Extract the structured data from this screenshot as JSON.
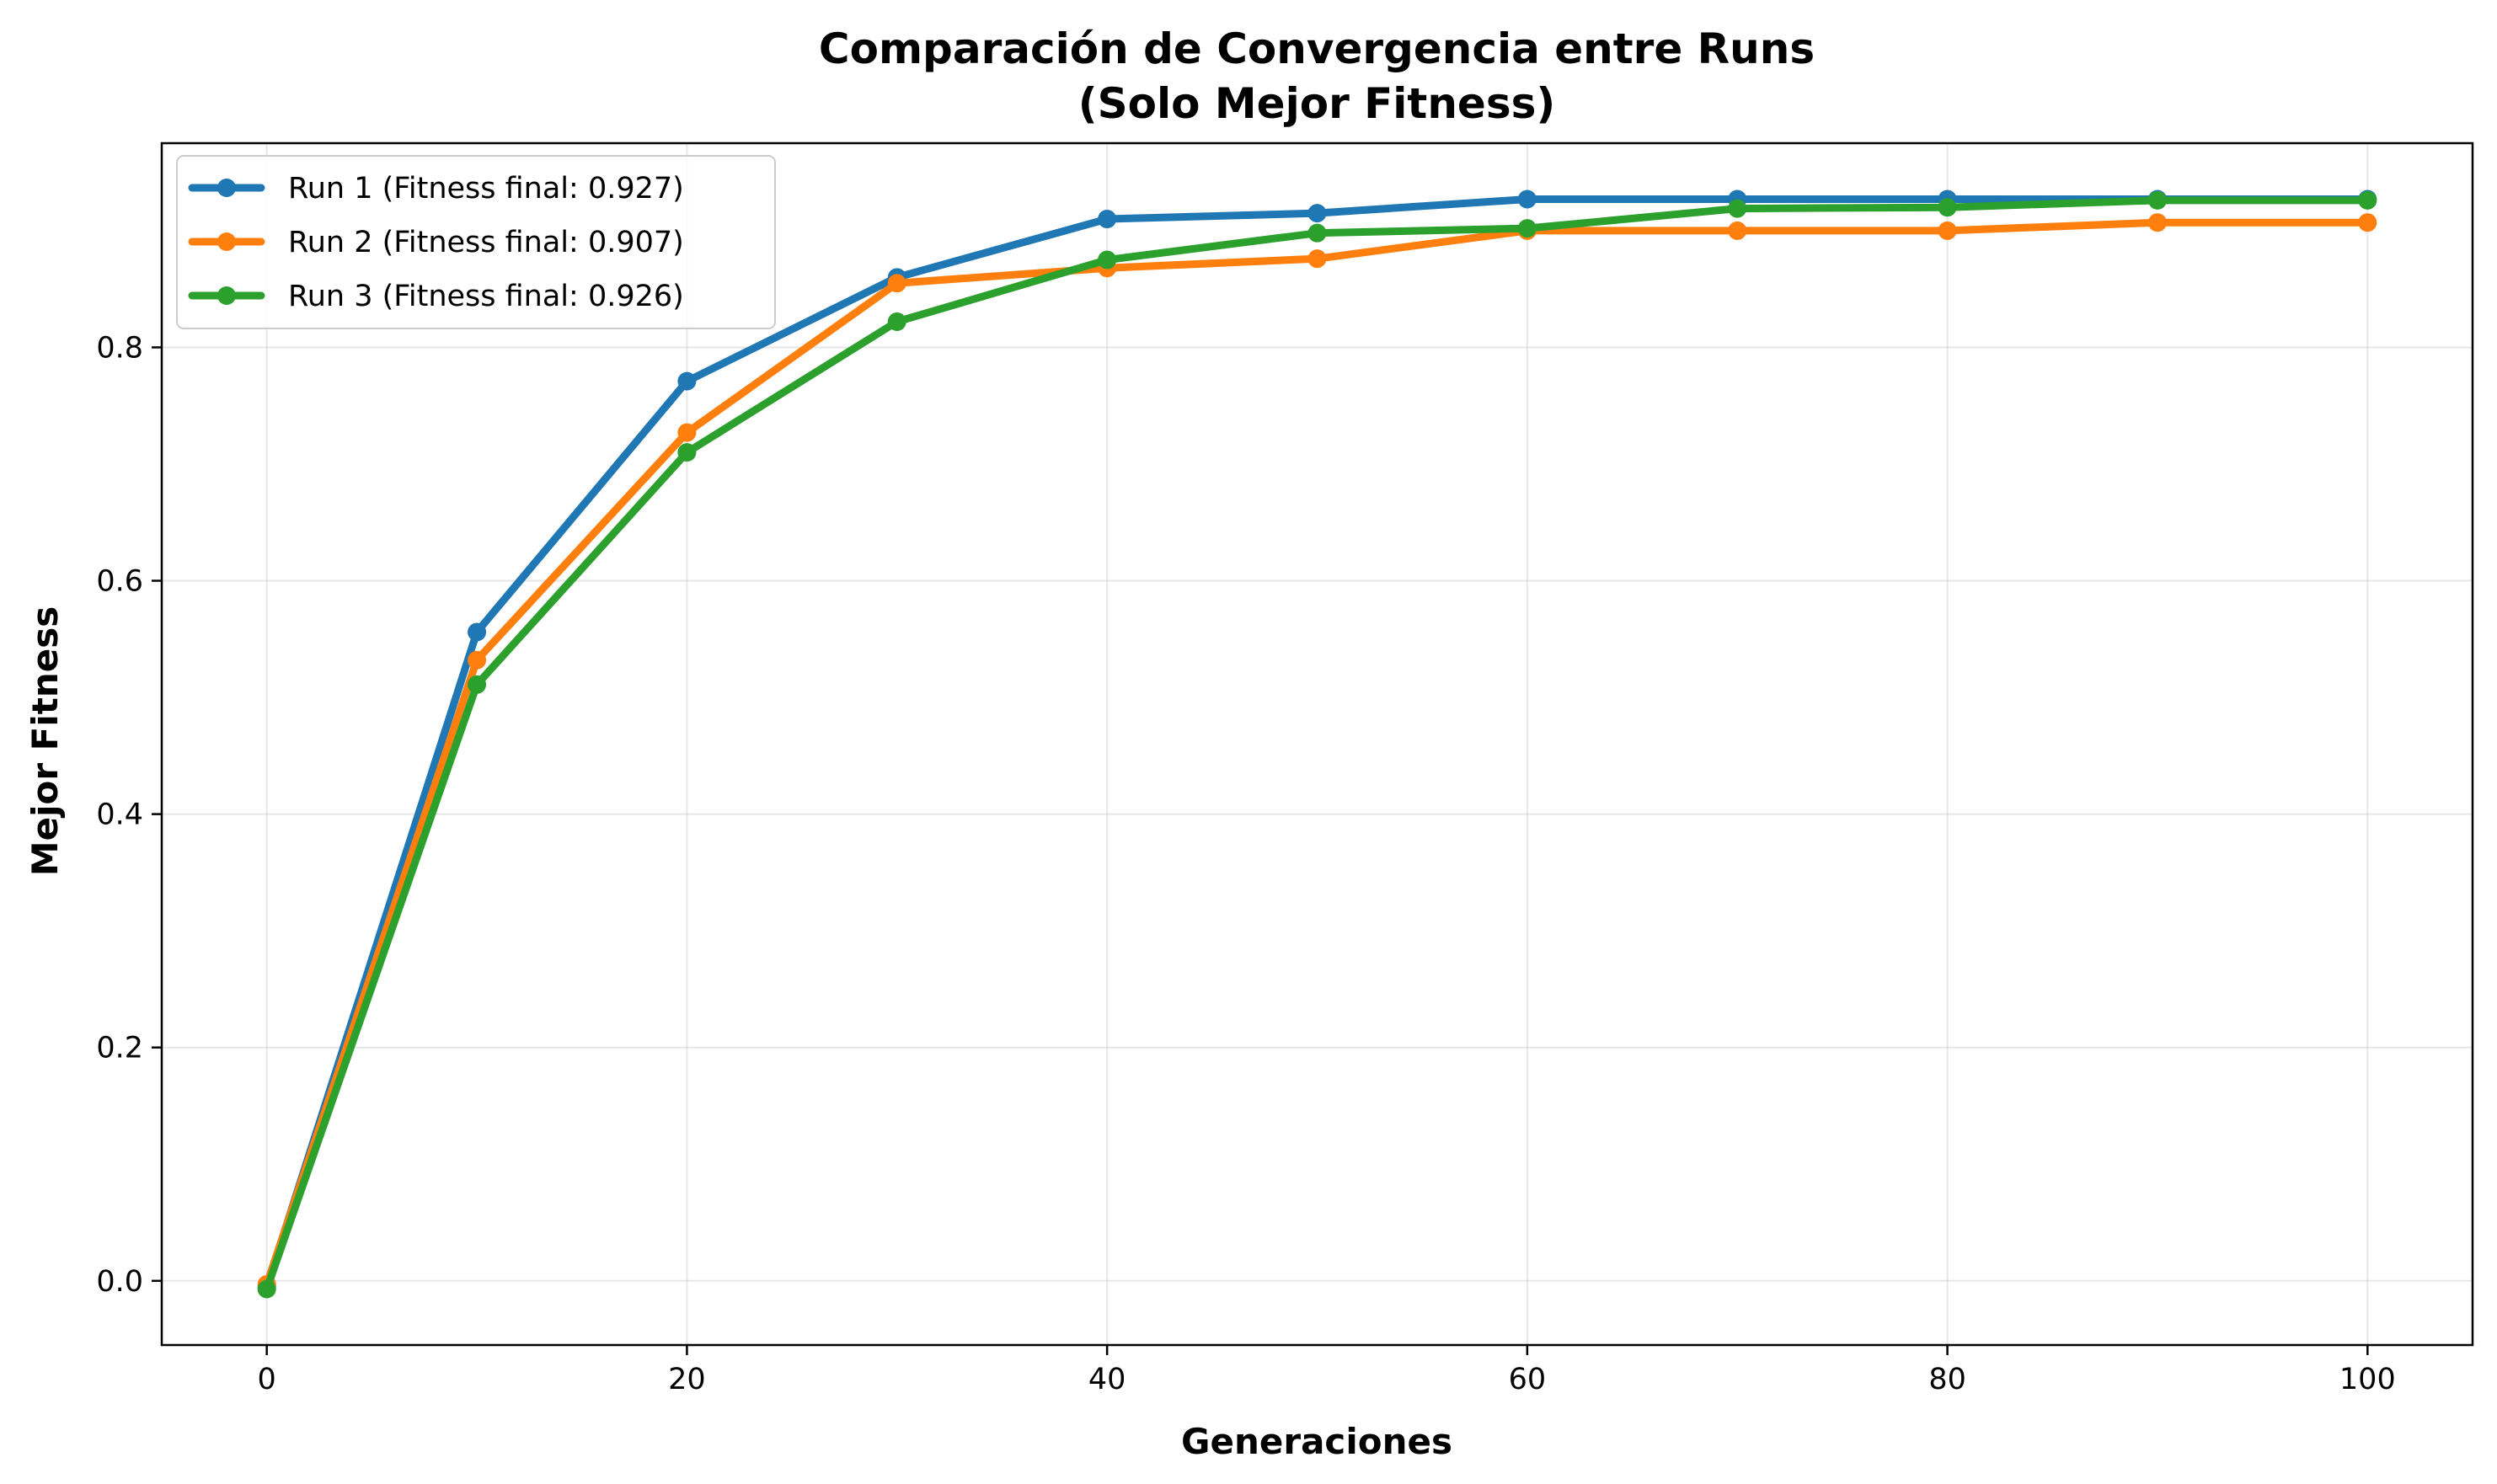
{
  "chart_data": {
    "type": "line",
    "title": [
      "Comparación de Convergencia entre Runs",
      "(Solo Mejor Fitness)"
    ],
    "xlabel": "Generaciones",
    "ylabel": "Mejor Fitness",
    "xlim": [
      -5,
      105
    ],
    "ylim": [
      -0.055,
      0.975
    ],
    "xticks": [
      0,
      20,
      40,
      60,
      80,
      100
    ],
    "xtick_labels": [
      "0",
      "20",
      "40",
      "60",
      "80",
      "100"
    ],
    "yticks": [
      0.0,
      0.2,
      0.4,
      0.6,
      0.8
    ],
    "ytick_labels": [
      "0.0",
      "0.2",
      "0.4",
      "0.6",
      "0.8"
    ],
    "grid": true,
    "legend_position": "upper-left",
    "x": [
      0,
      10,
      20,
      30,
      40,
      50,
      60,
      70,
      80,
      90,
      100
    ],
    "series": [
      {
        "name": "Run 1 (Fitness final: 0.927)",
        "color": "#1f77b4",
        "values": [
          -0.005,
          0.556,
          0.771,
          0.86,
          0.91,
          0.915,
          0.927,
          0.927,
          0.927,
          0.927,
          0.927
        ]
      },
      {
        "name": "Run 2 (Fitness final: 0.907)",
        "color": "#ff7f0e",
        "values": [
          -0.003,
          0.532,
          0.727,
          0.855,
          0.868,
          0.876,
          0.9,
          0.9,
          0.9,
          0.907,
          0.907
        ]
      },
      {
        "name": "Run 3 (Fitness final: 0.926)",
        "color": "#2ca02c",
        "values": [
          -0.007,
          0.511,
          0.71,
          0.822,
          0.875,
          0.898,
          0.902,
          0.919,
          0.92,
          0.926,
          0.926
        ]
      }
    ]
  }
}
